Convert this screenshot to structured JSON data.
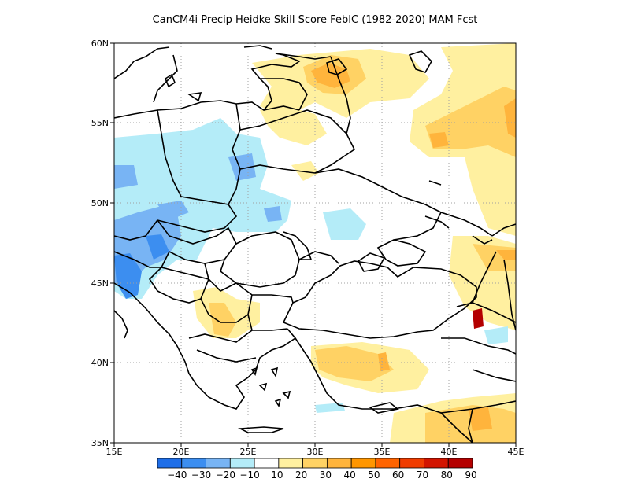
{
  "title": "CanCM4i Precip Heidke Skill Score FebIC (1982-2020) MAM Fcst",
  "map": {
    "lon_range": [
      15,
      45
    ],
    "lat_range": [
      35,
      60
    ],
    "lon_ticks": [
      "15E",
      "20E",
      "25E",
      "30E",
      "35E",
      "40E",
      "45E"
    ],
    "lat_ticks": [
      "35N",
      "40N",
      "45N",
      "50N",
      "55N",
      "60N"
    ],
    "grid": "dotted"
  },
  "legend": {
    "labels": [
      "-40",
      "-30",
      "-20",
      "-10",
      "10",
      "20",
      "30",
      "40",
      "50",
      "60",
      "70",
      "80",
      "90"
    ],
    "colors": [
      "#1e6ee8",
      "#3c8ef0",
      "#78b4f4",
      "#b4ecf8",
      "#ffffff",
      "#fff0a0",
      "#ffd264",
      "#ffb43c",
      "#ff9600",
      "#ff6400",
      "#f03c00",
      "#d21400",
      "#b40000"
    ]
  },
  "fields": {
    "light_blue": "#b4ecf8",
    "mid_blue": "#78b4f4",
    "dark_blue": "#3c8ef0",
    "light_yellow": "#fff0a0",
    "yellow": "#ffd264",
    "orange": "#ffb43c",
    "deep_orange": "#ff9600",
    "dark_red": "#b40000"
  }
}
